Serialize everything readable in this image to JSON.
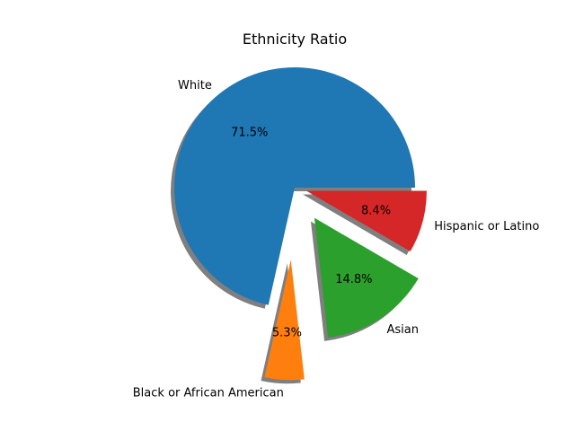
{
  "chart_data": {
    "type": "pie",
    "title": "Ethnicity Ratio",
    "shadow": true,
    "slices": [
      {
        "label": "White",
        "value": 71.5,
        "pct_label": "71.5%",
        "color": "#1f77b4",
        "explode": 0.0
      },
      {
        "label": "Black or African American",
        "value": 5.3,
        "pct_label": "5.3%",
        "color": "#ff7f0e",
        "explode": 0.6
      },
      {
        "label": "Asian",
        "value": 14.8,
        "pct_label": "14.8%",
        "color": "#2ca02c",
        "explode": 0.3
      },
      {
        "label": "Hispanic or Latino",
        "value": 8.4,
        "pct_label": "8.4%",
        "color": "#d62728",
        "explode": 0.1
      }
    ]
  }
}
